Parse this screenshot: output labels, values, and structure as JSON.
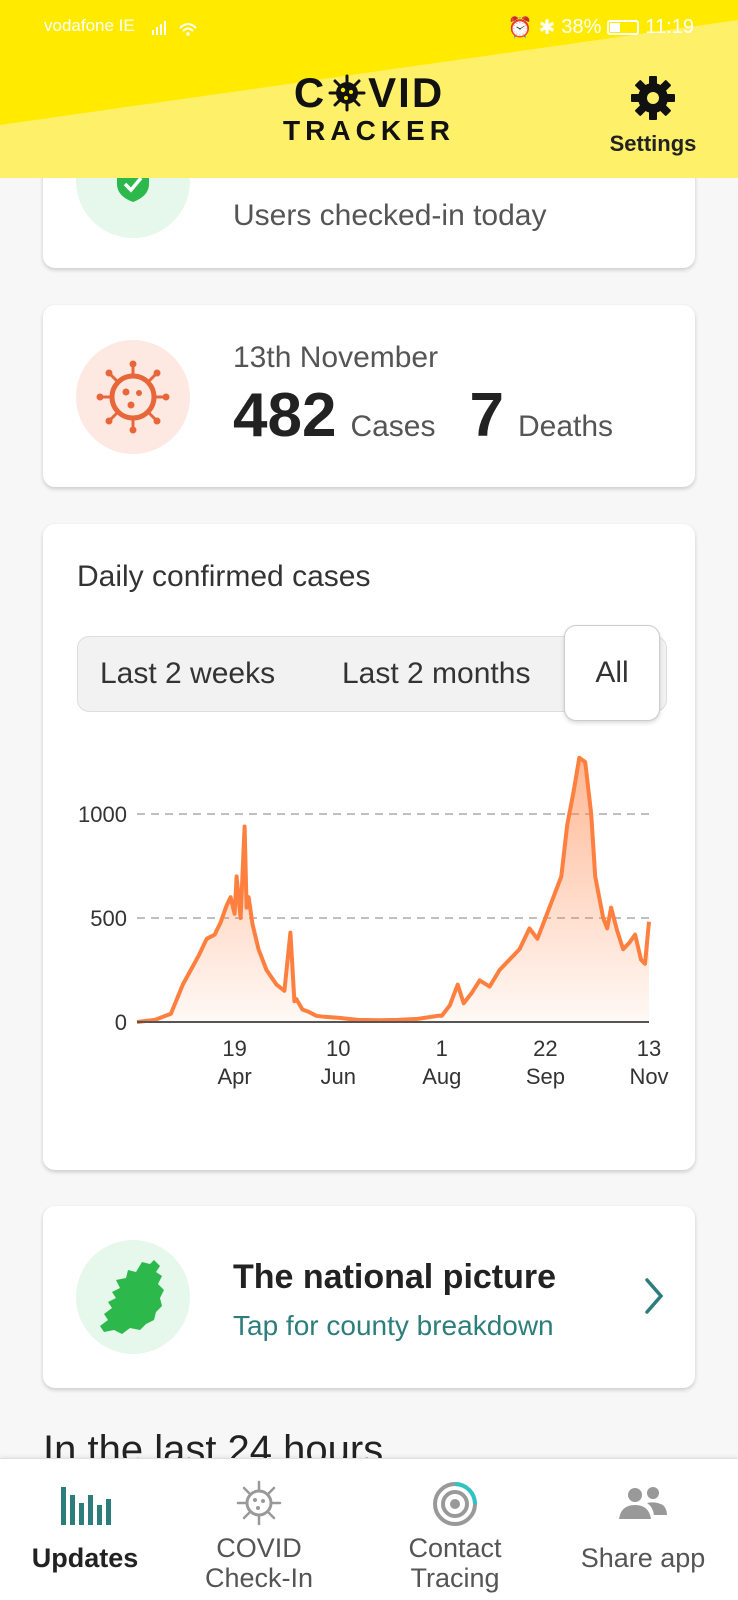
{
  "status_bar": {
    "carrier": "vodafone IE",
    "battery": "38%",
    "time": "11:19"
  },
  "header": {
    "logo_line1_left": "C",
    "logo_line1_right": "VID",
    "logo_line2": "TRACKER",
    "settings_label": "Settings",
    "settings_icon": "gear-icon"
  },
  "checkins_card": {
    "subtitle": "Users checked-in today",
    "icon": "shield-check-icon"
  },
  "cases_card": {
    "date": "13th November",
    "cases_value": "482",
    "cases_label": "Cases",
    "deaths_value": "7",
    "deaths_label": "Deaths",
    "icon": "virus-icon"
  },
  "chart_card": {
    "title": "Daily confirmed cases",
    "ranges": [
      "Last 2 weeks",
      "Last 2 months",
      "All"
    ],
    "selected_range": "All"
  },
  "chart_data": {
    "type": "area",
    "title": "Daily confirmed cases",
    "xlabel": "",
    "ylabel": "",
    "ylim": [
      0,
      1300
    ],
    "yticks": [
      "0",
      "500",
      "1000"
    ],
    "ytick_values": [
      0,
      500,
      1000
    ],
    "xticks": [
      {
        "day": "19",
        "month": "Apr"
      },
      {
        "day": "10",
        "month": "Jun"
      },
      {
        "day": "1",
        "month": "Aug"
      },
      {
        "day": "22",
        "month": "Sep"
      },
      {
        "day": "13",
        "month": "Nov"
      }
    ],
    "xtick_dates": [
      "2020-04-19",
      "2020-06-10",
      "2020-08-01",
      "2020-09-22",
      "2020-11-13"
    ],
    "grid": "dashed horizontal at 500 and 1000",
    "color": "#ff7f3f",
    "series": [
      {
        "x": [
          "2020-03-01",
          "2020-03-10",
          "2020-03-18",
          "2020-03-24",
          "2020-03-28",
          "2020-04-01",
          "2020-04-05",
          "2020-04-09",
          "2020-04-12",
          "2020-04-15",
          "2020-04-17",
          "2020-04-19",
          "2020-04-20",
          "2020-04-22",
          "2020-04-24",
          "2020-04-25",
          "2020-04-26",
          "2020-04-28",
          "2020-05-01",
          "2020-05-05",
          "2020-05-10",
          "2020-05-14",
          "2020-05-17",
          "2020-05-19",
          "2020-05-20",
          "2020-05-23",
          "2020-05-26",
          "2020-05-30",
          "2020-06-03",
          "2020-06-10",
          "2020-06-20",
          "2020-07-01",
          "2020-07-10",
          "2020-07-20",
          "2020-07-30",
          "2020-08-01",
          "2020-08-05",
          "2020-08-09",
          "2020-08-12",
          "2020-08-16",
          "2020-08-20",
          "2020-08-25",
          "2020-08-30",
          "2020-09-04",
          "2020-09-09",
          "2020-09-14",
          "2020-09-18",
          "2020-09-22",
          "2020-09-26",
          "2020-09-30",
          "2020-10-03",
          "2020-10-06",
          "2020-10-09",
          "2020-10-12",
          "2020-10-15",
          "2020-10-17",
          "2020-10-19",
          "2020-10-21",
          "2020-10-23",
          "2020-10-25",
          "2020-10-28",
          "2020-10-31",
          "2020-11-03",
          "2020-11-06",
          "2020-11-09",
          "2020-11-11",
          "2020-11-13"
        ],
        "values": [
          0,
          10,
          40,
          180,
          250,
          320,
          400,
          420,
          480,
          560,
          600,
          520,
          700,
          500,
          940,
          550,
          600,
          470,
          350,
          250,
          180,
          150,
          430,
          100,
          110,
          60,
          50,
          30,
          25,
          20,
          10,
          8,
          10,
          15,
          30,
          30,
          80,
          180,
          90,
          140,
          200,
          170,
          250,
          300,
          350,
          450,
          400,
          500,
          600,
          700,
          950,
          1100,
          1270,
          1250,
          1000,
          700,
          600,
          500,
          450,
          550,
          440,
          350,
          380,
          420,
          300,
          280,
          482
        ]
      }
    ]
  },
  "national_card": {
    "title": "The national picture",
    "subtitle": "Tap for county breakdown",
    "icon": "ireland-map-icon",
    "chevron_icon": "chevron-right-icon"
  },
  "section_heading": "In the last 24 hours",
  "nav": {
    "items": [
      {
        "label": "Updates",
        "icon": "bar-chart-icon",
        "active": true
      },
      {
        "label_line1": "COVID",
        "label_line2": "Check-In",
        "icon": "virus-icon"
      },
      {
        "label_line1": "Contact",
        "label_line2": "Tracing",
        "icon": "target-icon"
      },
      {
        "label": "Share app",
        "icon": "people-icon"
      }
    ]
  }
}
